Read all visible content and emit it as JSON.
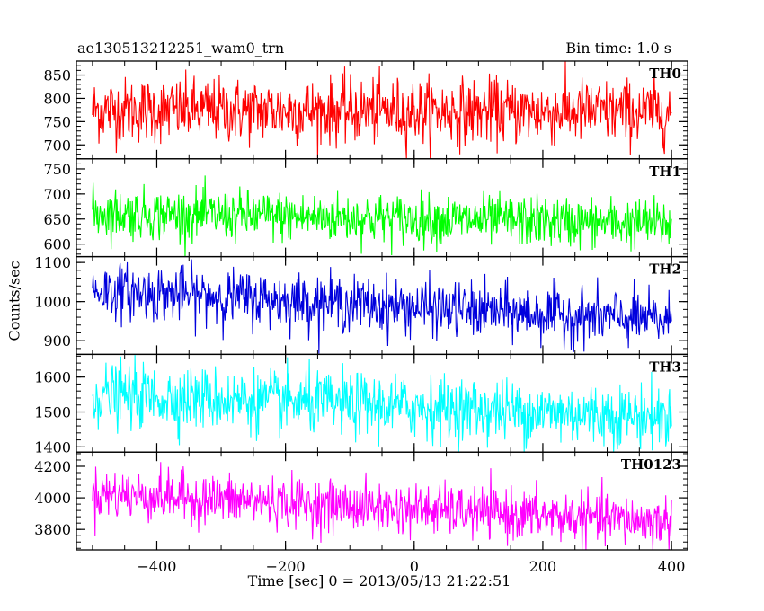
{
  "header": {
    "title": "ae130513212251_wam0_trn",
    "bin_time": "Bin time: 1.0 s"
  },
  "chart_data": {
    "type": "line",
    "xlabel": "Time [sec] 0 = 2013/05/13 21:22:51",
    "ylabel": "Counts/sec",
    "xlim": [
      -525,
      425
    ],
    "x_ticks": [
      -400,
      -200,
      0,
      200,
      400
    ],
    "x_tick_labels": [
      "−400",
      "−200",
      "0",
      "200",
      "400"
    ],
    "x_range_data": [
      -500,
      400
    ],
    "panels": [
      {
        "name": "TH0",
        "color": "#ff0000",
        "ylim": [
          670,
          880
        ],
        "y_ticks": [
          700,
          750,
          800,
          850
        ],
        "mean_start": 775,
        "mean_end": 770,
        "noise_std": 35
      },
      {
        "name": "TH1",
        "color": "#00ff00",
        "ylim": [
          575,
          770
        ],
        "y_ticks": [
          600,
          650,
          700,
          750
        ],
        "mean_start": 662,
        "mean_end": 640,
        "noise_std": 25
      },
      {
        "name": "TH2",
        "color": "#0000dd",
        "ylim": [
          865,
          1115
        ],
        "y_ticks": [
          900,
          1000,
          1100
        ],
        "mean_start": 1030,
        "mean_end": 950,
        "noise_std": 35
      },
      {
        "name": "TH3",
        "color": "#00ffff",
        "ylim": [
          1385,
          1665
        ],
        "y_ticks": [
          1400,
          1500,
          1600
        ],
        "mean_start": 1550,
        "mean_end": 1485,
        "noise_std": 45
      },
      {
        "name": "TH0123",
        "color": "#ff00ff",
        "ylim": [
          3670,
          4290
        ],
        "y_ticks": [
          3800,
          4000,
          4200
        ],
        "mean_start": 4030,
        "mean_end": 3845,
        "noise_std": 80
      }
    ]
  }
}
